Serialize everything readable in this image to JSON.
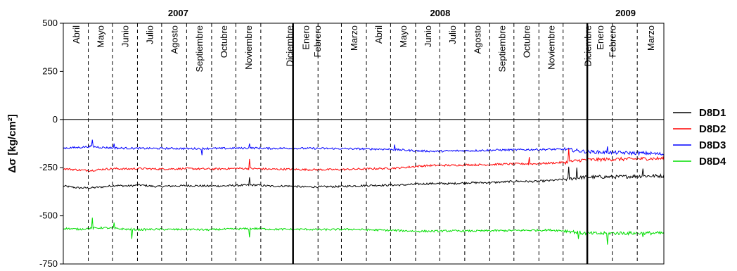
{
  "chart_data": {
    "type": "line",
    "title": "",
    "ylabel": "Δσ [kg/cm²]",
    "xlabel": "",
    "ylim": [
      -750,
      500
    ],
    "yticks": [
      500,
      250,
      0,
      -250,
      -500,
      -750
    ],
    "ytick_labels": [
      "500",
      "250",
      "0",
      "-250",
      "-500",
      "-750"
    ],
    "grid": false,
    "legend_position": "right",
    "x_start": "2007-03-22",
    "x_end": "2009-04-05",
    "years": [
      {
        "label": "2007",
        "start": "2007-03-22",
        "end": "2008-01-01"
      },
      {
        "label": "2008",
        "start": "2008-01-01",
        "end": "2008-12-31"
      },
      {
        "label": "2009",
        "start": "2008-12-31",
        "end": "2009-04-05"
      }
    ],
    "year_boundaries": [
      "2008-01-01",
      "2008-12-31"
    ],
    "month_boundaries": [
      "2007-04-22",
      "2007-05-22",
      "2007-06-22",
      "2007-07-22",
      "2007-08-22",
      "2007-09-22",
      "2007-10-22",
      "2007-11-22",
      "2008-02-01",
      "2008-03-01",
      "2008-04-01",
      "2008-05-01",
      "2008-06-01",
      "2008-07-01",
      "2008-08-01",
      "2008-09-01",
      "2008-10-01",
      "2008-11-01",
      "2008-12-01",
      "2009-01-31",
      "2009-03-03"
    ],
    "months": [
      "Abril",
      "Mayo",
      "Junio",
      "Julio",
      "Agosto",
      "Septiembre",
      "Octubre",
      "Noviembre",
      "Diciembre",
      "Enero",
      "Febrero",
      "Marzo",
      "Abril",
      "Mayo",
      "Junio",
      "Julio",
      "Agosto",
      "Septiembre",
      "Octubre",
      "Noviembre",
      "Diciembre",
      "Enero",
      "Febrero",
      "Marzo"
    ],
    "series": [
      {
        "name": "D8D1",
        "color": "#000000",
        "x": [
          "2007-03-22",
          "2007-04-10",
          "2007-04-25",
          "2007-05-10",
          "2007-05-25",
          "2007-06-10",
          "2007-06-25",
          "2007-07-15",
          "2007-08-05",
          "2007-08-25",
          "2007-09-15",
          "2007-10-05",
          "2007-10-25",
          "2007-11-15",
          "2007-12-05",
          "2007-12-25",
          "2008-01-15",
          "2008-02-05",
          "2008-02-25",
          "2008-03-15",
          "2008-04-05",
          "2008-04-25",
          "2008-05-15",
          "2008-06-05",
          "2008-06-25",
          "2008-07-15",
          "2008-08-05",
          "2008-08-25",
          "2008-09-15",
          "2008-10-05",
          "2008-10-25",
          "2008-11-15",
          "2008-12-05",
          "2008-12-25",
          "2009-01-15",
          "2009-02-05",
          "2009-02-25",
          "2009-03-15",
          "2009-04-05"
        ],
        "values": [
          -345,
          -355,
          -355,
          -350,
          -342,
          -345,
          -340,
          -348,
          -345,
          -343,
          -345,
          -345,
          -342,
          -340,
          -346,
          -345,
          -350,
          -349,
          -348,
          -345,
          -342,
          -341,
          -340,
          -335,
          -332,
          -333,
          -328,
          -328,
          -325,
          -320,
          -322,
          -317,
          -310,
          -300,
          -298,
          -298,
          -295,
          -293,
          -293
        ]
      },
      {
        "name": "D8D2",
        "color": "#ff0000",
        "x": [
          "2007-03-22",
          "2007-04-10",
          "2007-04-25",
          "2007-05-10",
          "2007-05-25",
          "2007-06-10",
          "2007-06-25",
          "2007-07-15",
          "2007-08-05",
          "2007-08-25",
          "2007-09-15",
          "2007-10-05",
          "2007-10-25",
          "2007-11-15",
          "2007-12-05",
          "2007-12-25",
          "2008-01-15",
          "2008-02-05",
          "2008-02-25",
          "2008-03-15",
          "2008-04-05",
          "2008-04-25",
          "2008-05-15",
          "2008-06-05",
          "2008-06-25",
          "2008-07-15",
          "2008-08-05",
          "2008-08-25",
          "2008-09-15",
          "2008-10-05",
          "2008-10-25",
          "2008-11-15",
          "2008-12-05",
          "2008-12-25",
          "2009-01-15",
          "2009-02-05",
          "2009-02-25",
          "2009-03-15",
          "2009-04-05"
        ],
        "values": [
          -255,
          -262,
          -265,
          -258,
          -255,
          -257,
          -254,
          -257,
          -256,
          -255,
          -257,
          -256,
          -254,
          -255,
          -258,
          -258,
          -260,
          -260,
          -260,
          -258,
          -256,
          -254,
          -250,
          -242,
          -238,
          -238,
          -235,
          -235,
          -232,
          -230,
          -230,
          -226,
          -222,
          -210,
          -208,
          -206,
          -205,
          -203,
          -203
        ]
      },
      {
        "name": "D8D3",
        "color": "#0000ff",
        "x": [
          "2007-03-22",
          "2007-04-10",
          "2007-04-25",
          "2007-05-10",
          "2007-05-25",
          "2007-06-10",
          "2007-06-25",
          "2007-07-15",
          "2007-08-05",
          "2007-08-25",
          "2007-09-15",
          "2007-10-05",
          "2007-10-25",
          "2007-11-15",
          "2007-12-05",
          "2007-12-25",
          "2008-01-15",
          "2008-02-05",
          "2008-02-25",
          "2008-03-15",
          "2008-04-05",
          "2008-04-25",
          "2008-05-15",
          "2008-06-05",
          "2008-06-25",
          "2008-07-15",
          "2008-08-05",
          "2008-08-25",
          "2008-09-15",
          "2008-10-05",
          "2008-10-25",
          "2008-11-15",
          "2008-12-05",
          "2008-12-25",
          "2009-01-15",
          "2009-02-05",
          "2009-02-25",
          "2009-03-15",
          "2009-04-05"
        ],
        "values": [
          -148,
          -145,
          -140,
          -145,
          -148,
          -149,
          -150,
          -150,
          -150,
          -151,
          -150,
          -150,
          -149,
          -148,
          -150,
          -149,
          -150,
          -150,
          -151,
          -152,
          -153,
          -154,
          -158,
          -163,
          -165,
          -163,
          -162,
          -160,
          -158,
          -157,
          -156,
          -155,
          -155,
          -165,
          -170,
          -172,
          -174,
          -175,
          -180
        ]
      },
      {
        "name": "D8D4",
        "color": "#00dd00",
        "x": [
          "2007-03-22",
          "2007-04-10",
          "2007-04-25",
          "2007-05-10",
          "2007-05-25",
          "2007-06-10",
          "2007-06-25",
          "2007-07-15",
          "2007-08-05",
          "2007-08-25",
          "2007-09-15",
          "2007-10-05",
          "2007-10-25",
          "2007-11-15",
          "2007-12-05",
          "2007-12-25",
          "2008-01-15",
          "2008-02-05",
          "2008-02-25",
          "2008-03-15",
          "2008-04-05",
          "2008-04-25",
          "2008-05-15",
          "2008-06-05",
          "2008-06-25",
          "2008-07-15",
          "2008-08-05",
          "2008-08-25",
          "2008-09-15",
          "2008-10-05",
          "2008-10-25",
          "2008-11-15",
          "2008-12-05",
          "2008-12-25",
          "2009-01-15",
          "2009-02-05",
          "2009-02-25",
          "2009-03-15",
          "2009-04-05"
        ],
        "values": [
          -565,
          -570,
          -565,
          -562,
          -566,
          -570,
          -572,
          -570,
          -571,
          -570,
          -573,
          -570,
          -568,
          -566,
          -570,
          -570,
          -570,
          -572,
          -571,
          -570,
          -573,
          -575,
          -577,
          -580,
          -580,
          -578,
          -579,
          -578,
          -577,
          -576,
          -575,
          -574,
          -578,
          -590,
          -592,
          -590,
          -590,
          -590,
          -590
        ]
      }
    ],
    "spikes": [
      {
        "series": 2,
        "date": "2007-04-27",
        "value": -105
      },
      {
        "series": 3,
        "date": "2007-04-27",
        "value": -510
      },
      {
        "series": 3,
        "date": "2007-05-24",
        "value": -535
      },
      {
        "series": 2,
        "date": "2007-05-24",
        "value": -125
      },
      {
        "series": 3,
        "date": "2007-06-15",
        "value": -620
      },
      {
        "series": 2,
        "date": "2007-09-10",
        "value": -185
      },
      {
        "series": 2,
        "date": "2007-11-08",
        "value": -125
      },
      {
        "series": 1,
        "date": "2007-11-08",
        "value": -205
      },
      {
        "series": 0,
        "date": "2007-11-08",
        "value": -300
      },
      {
        "series": 3,
        "date": "2007-11-08",
        "value": -612
      },
      {
        "series": 2,
        "date": "2008-05-06",
        "value": -130
      },
      {
        "series": 1,
        "date": "2008-10-20",
        "value": -195
      },
      {
        "series": 1,
        "date": "2008-12-08",
        "value": -150
      },
      {
        "series": 0,
        "date": "2008-12-08",
        "value": -245
      },
      {
        "series": 0,
        "date": "2008-12-18",
        "value": -250
      },
      {
        "series": 3,
        "date": "2008-12-20",
        "value": -620
      },
      {
        "series": 3,
        "date": "2009-01-25",
        "value": -650
      },
      {
        "series": 2,
        "date": "2009-01-25",
        "value": -140
      },
      {
        "series": 0,
        "date": "2009-03-10",
        "value": -255
      },
      {
        "series": 3,
        "date": "2009-03-10",
        "value": -610
      }
    ]
  }
}
